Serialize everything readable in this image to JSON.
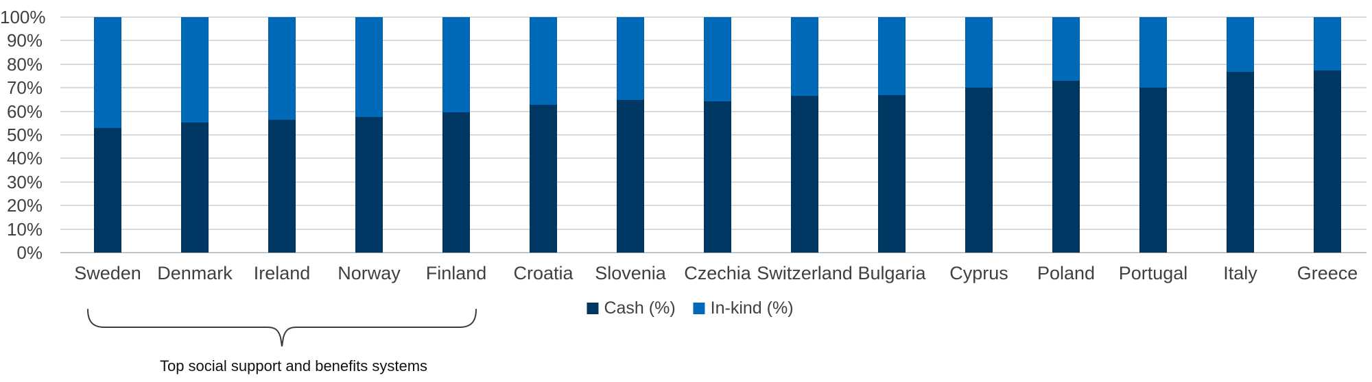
{
  "chart_data": {
    "type": "bar",
    "stacked": true,
    "title": "",
    "categories": [
      "Sweden",
      "Denmark",
      "Ireland",
      "Norway",
      "Finland",
      "Croatia",
      "Slovenia",
      "Czechia",
      "Switzerland",
      "Bulgaria",
      "Cyprus",
      "Poland",
      "Portugal",
      "Italy",
      "Greece"
    ],
    "series": [
      {
        "name": "Cash (%)",
        "color": "#003763",
        "values": [
          52.9,
          55.3,
          56.4,
          57.5,
          59.7,
          62.9,
          64.9,
          64.1,
          66.6,
          66.9,
          70.0,
          72.9,
          70.2,
          76.8,
          77.4
        ]
      },
      {
        "name": "In-kind (%)",
        "color": "#0069B8",
        "values": [
          47.1,
          44.7,
          43.6,
          42.5,
          40.3,
          37.1,
          35.1,
          35.9,
          33.4,
          33.1,
          30.0,
          27.1,
          29.8,
          23.2,
          22.6
        ]
      }
    ],
    "ylim": [
      0,
      100
    ],
    "y_ticks": [
      "0%",
      "10%",
      "20%",
      "30%",
      "40%",
      "50%",
      "60%",
      "70%",
      "80%",
      "90%",
      "100%"
    ],
    "grid": true,
    "legend_position": "bottom"
  },
  "annotation": {
    "label": "Top social support and benefits systems",
    "span_categories": [
      "Sweden",
      "Finland"
    ]
  },
  "colors": {
    "cash": "#003763",
    "in_kind": "#0069B8",
    "gridline": "#D9D9D9",
    "axis_text": "#404040",
    "annotation_text": "#111111"
  }
}
